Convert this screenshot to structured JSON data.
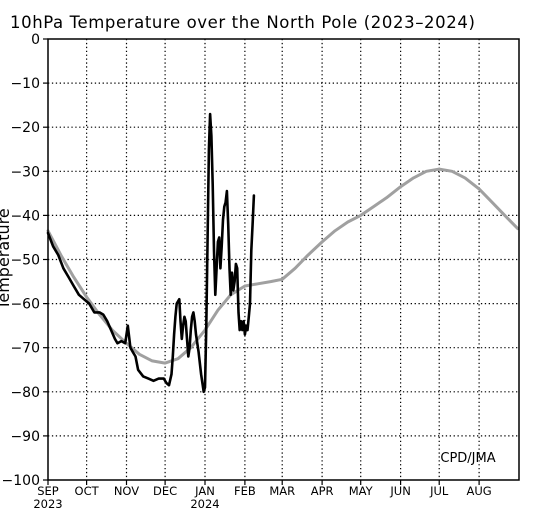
{
  "chart_data": {
    "type": "line",
    "title": "10hPa Temperature over the North Pole (2023–2024)",
    "ylabel": "Temperature",
    "xlabel": "",
    "ylim": [
      -100,
      0
    ],
    "yticks": [
      0,
      -10,
      -20,
      -30,
      -40,
      -50,
      -60,
      -70,
      -80,
      -90,
      -100
    ],
    "xlim": [
      "2023-09-01",
      "2024-08-31"
    ],
    "xticks": [
      {
        "date": "2023-09-01",
        "label": "SEP",
        "sub": "2023"
      },
      {
        "date": "2023-10-01",
        "label": "OCT",
        "sub": ""
      },
      {
        "date": "2023-11-01",
        "label": "NOV",
        "sub": ""
      },
      {
        "date": "2023-12-01",
        "label": "DEC",
        "sub": ""
      },
      {
        "date": "2024-01-01",
        "label": "JAN",
        "sub": "2024"
      },
      {
        "date": "2024-02-01",
        "label": "FEB",
        "sub": ""
      },
      {
        "date": "2024-03-01",
        "label": "MAR",
        "sub": ""
      },
      {
        "date": "2024-04-01",
        "label": "APR",
        "sub": ""
      },
      {
        "date": "2024-05-01",
        "label": "MAY",
        "sub": ""
      },
      {
        "date": "2024-06-01",
        "label": "JUN",
        "sub": ""
      },
      {
        "date": "2024-07-01",
        "label": "JUL",
        "sub": ""
      },
      {
        "date": "2024-08-01",
        "label": "AUG",
        "sub": ""
      }
    ],
    "grid": true,
    "annotation": "CPD/JMA",
    "series": [
      {
        "color": "#a0a0a0",
        "points": [
          [
            "2023-09-01",
            -43.5
          ],
          [
            "2023-09-11",
            -49
          ],
          [
            "2023-09-21",
            -54
          ],
          [
            "2023-10-01",
            -58.5
          ],
          [
            "2023-10-11",
            -62.5
          ],
          [
            "2023-10-21",
            -66
          ],
          [
            "2023-11-01",
            -69
          ],
          [
            "2023-11-11",
            -71.5
          ],
          [
            "2023-11-21",
            -73
          ],
          [
            "2023-12-01",
            -73.5
          ],
          [
            "2023-12-11",
            -72.5
          ],
          [
            "2023-12-21",
            -70
          ],
          [
            "2024-01-01",
            -66
          ],
          [
            "2024-01-11",
            -61.5
          ],
          [
            "2024-01-21",
            -58
          ],
          [
            "2024-02-01",
            -56
          ],
          [
            "2024-02-11",
            -55.5
          ],
          [
            "2024-02-21",
            -55
          ],
          [
            "2024-03-01",
            -54.5
          ],
          [
            "2024-03-11",
            -52
          ],
          [
            "2024-03-21",
            -49
          ],
          [
            "2024-04-01",
            -46
          ],
          [
            "2024-04-11",
            -43.5
          ],
          [
            "2024-04-21",
            -41.5
          ],
          [
            "2024-05-01",
            -40
          ],
          [
            "2024-05-11",
            -38
          ],
          [
            "2024-05-21",
            -36
          ],
          [
            "2024-06-01",
            -33.5
          ],
          [
            "2024-06-11",
            -31.5
          ],
          [
            "2024-06-21",
            -30
          ],
          [
            "2024-07-01",
            -29.5
          ],
          [
            "2024-07-11",
            -30
          ],
          [
            "2024-07-21",
            -31.5
          ],
          [
            "2024-08-01",
            -34
          ],
          [
            "2024-08-11",
            -37
          ],
          [
            "2024-08-21",
            -40
          ],
          [
            "2024-08-31",
            -43
          ]
        ]
      },
      {
        "color": "#000000",
        "points": [
          [
            "2023-09-01",
            -44
          ],
          [
            "2023-09-05",
            -47
          ],
          [
            "2023-09-09",
            -49
          ],
          [
            "2023-09-13",
            -52
          ],
          [
            "2023-09-17",
            -54
          ],
          [
            "2023-09-21",
            -56
          ],
          [
            "2023-09-25",
            -58
          ],
          [
            "2023-09-29",
            -59
          ],
          [
            "2023-10-03",
            -60
          ],
          [
            "2023-10-07",
            -62
          ],
          [
            "2023-10-11",
            -62
          ],
          [
            "2023-10-14",
            -62.5
          ],
          [
            "2023-10-17",
            -64
          ],
          [
            "2023-10-20",
            -66
          ],
          [
            "2023-10-23",
            -68
          ],
          [
            "2023-10-25",
            -69
          ],
          [
            "2023-10-28",
            -68.5
          ],
          [
            "2023-10-31",
            -69
          ],
          [
            "2023-11-01",
            -67
          ],
          [
            "2023-11-02",
            -65
          ],
          [
            "2023-11-04",
            -70
          ],
          [
            "2023-11-06",
            -71
          ],
          [
            "2023-11-08",
            -72
          ],
          [
            "2023-11-10",
            -75
          ],
          [
            "2023-11-14",
            -76.5
          ],
          [
            "2023-11-18",
            -77
          ],
          [
            "2023-11-22",
            -77.5
          ],
          [
            "2023-11-26",
            -77
          ],
          [
            "2023-11-30",
            -77
          ],
          [
            "2023-12-02",
            -78
          ],
          [
            "2023-12-04",
            -78.5
          ],
          [
            "2023-12-06",
            -76
          ],
          [
            "2023-12-07",
            -72
          ],
          [
            "2023-12-08",
            -67
          ],
          [
            "2023-12-09",
            -63
          ],
          [
            "2023-12-10",
            -60
          ],
          [
            "2023-12-12",
            -59
          ],
          [
            "2023-12-13",
            -64
          ],
          [
            "2023-12-14",
            -68
          ],
          [
            "2023-12-15",
            -65
          ],
          [
            "2023-12-16",
            -63
          ],
          [
            "2023-12-17",
            -64
          ],
          [
            "2023-12-18",
            -68
          ],
          [
            "2023-12-19",
            -72
          ],
          [
            "2023-12-20",
            -70
          ],
          [
            "2023-12-21",
            -66
          ],
          [
            "2023-12-22",
            -63
          ],
          [
            "2023-12-23",
            -62
          ],
          [
            "2023-12-24",
            -64
          ],
          [
            "2023-12-25",
            -67
          ],
          [
            "2023-12-26",
            -69
          ],
          [
            "2023-12-27",
            -71
          ],
          [
            "2023-12-29",
            -76
          ],
          [
            "2023-12-31",
            -80
          ],
          [
            "2024-01-01",
            -79
          ],
          [
            "2024-01-02",
            -65
          ],
          [
            "2024-01-03",
            -45
          ],
          [
            "2024-01-04",
            -25
          ],
          [
            "2024-01-05",
            -17
          ],
          [
            "2024-01-06",
            -22
          ],
          [
            "2024-01-07",
            -33
          ],
          [
            "2024-01-08",
            -48
          ],
          [
            "2024-01-09",
            -58
          ],
          [
            "2024-01-10",
            -52
          ],
          [
            "2024-01-11",
            -46
          ],
          [
            "2024-01-12",
            -45
          ],
          [
            "2024-01-13",
            -52
          ],
          [
            "2024-01-14",
            -47
          ],
          [
            "2024-01-15",
            -41
          ],
          [
            "2024-01-16",
            -38
          ],
          [
            "2024-01-17",
            -37
          ],
          [
            "2024-01-18",
            -34.5
          ],
          [
            "2024-01-19",
            -42
          ],
          [
            "2024-01-20",
            -52
          ],
          [
            "2024-01-21",
            -58
          ],
          [
            "2024-01-22",
            -53
          ],
          [
            "2024-01-23",
            -57
          ],
          [
            "2024-01-24",
            -55
          ],
          [
            "2024-01-25",
            -51
          ],
          [
            "2024-01-26",
            -52
          ],
          [
            "2024-01-27",
            -62
          ],
          [
            "2024-01-28",
            -66
          ],
          [
            "2024-01-29",
            -64
          ],
          [
            "2024-01-30",
            -66
          ],
          [
            "2024-01-31",
            -64
          ],
          [
            "2024-02-01",
            -67
          ],
          [
            "2024-02-02",
            -65
          ],
          [
            "2024-02-03",
            -66
          ],
          [
            "2024-02-04",
            -63
          ],
          [
            "2024-02-05",
            -60
          ],
          [
            "2024-02-06",
            -48
          ],
          [
            "2024-02-07",
            -42
          ],
          [
            "2024-02-08",
            -35.5
          ]
        ]
      }
    ]
  }
}
